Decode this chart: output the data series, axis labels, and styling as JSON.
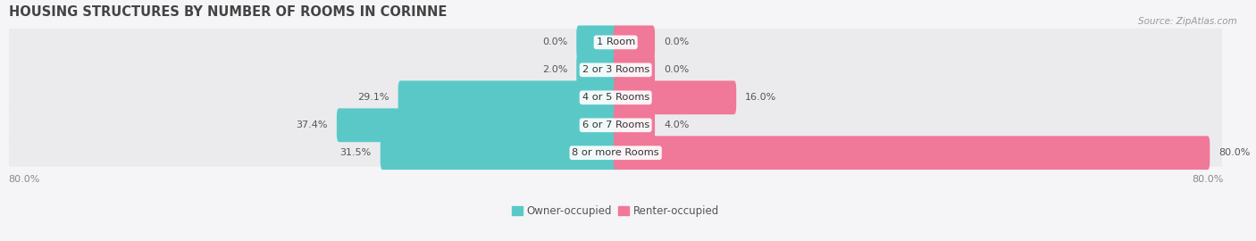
{
  "title": "HOUSING STRUCTURES BY NUMBER OF ROOMS IN CORINNE",
  "source": "Source: ZipAtlas.com",
  "categories": [
    "1 Room",
    "2 or 3 Rooms",
    "4 or 5 Rooms",
    "6 or 7 Rooms",
    "8 or more Rooms"
  ],
  "owner_values": [
    0.0,
    2.0,
    29.1,
    37.4,
    31.5
  ],
  "renter_values": [
    0.0,
    0.0,
    16.0,
    4.0,
    80.0
  ],
  "owner_color": "#5BC8C8",
  "renter_color": "#F07898",
  "row_bg_color": "#EFEFEF",
  "row_bg_color_alt": "#E8E8EE",
  "axis_left_label": "80.0%",
  "axis_right_label": "80.0%",
  "legend_owner": "Owner-occupied",
  "legend_renter": "Renter-occupied",
  "title_fontsize": 10.5,
  "bar_height": 0.62,
  "min_bar_val": 5.0,
  "xlim": 82
}
